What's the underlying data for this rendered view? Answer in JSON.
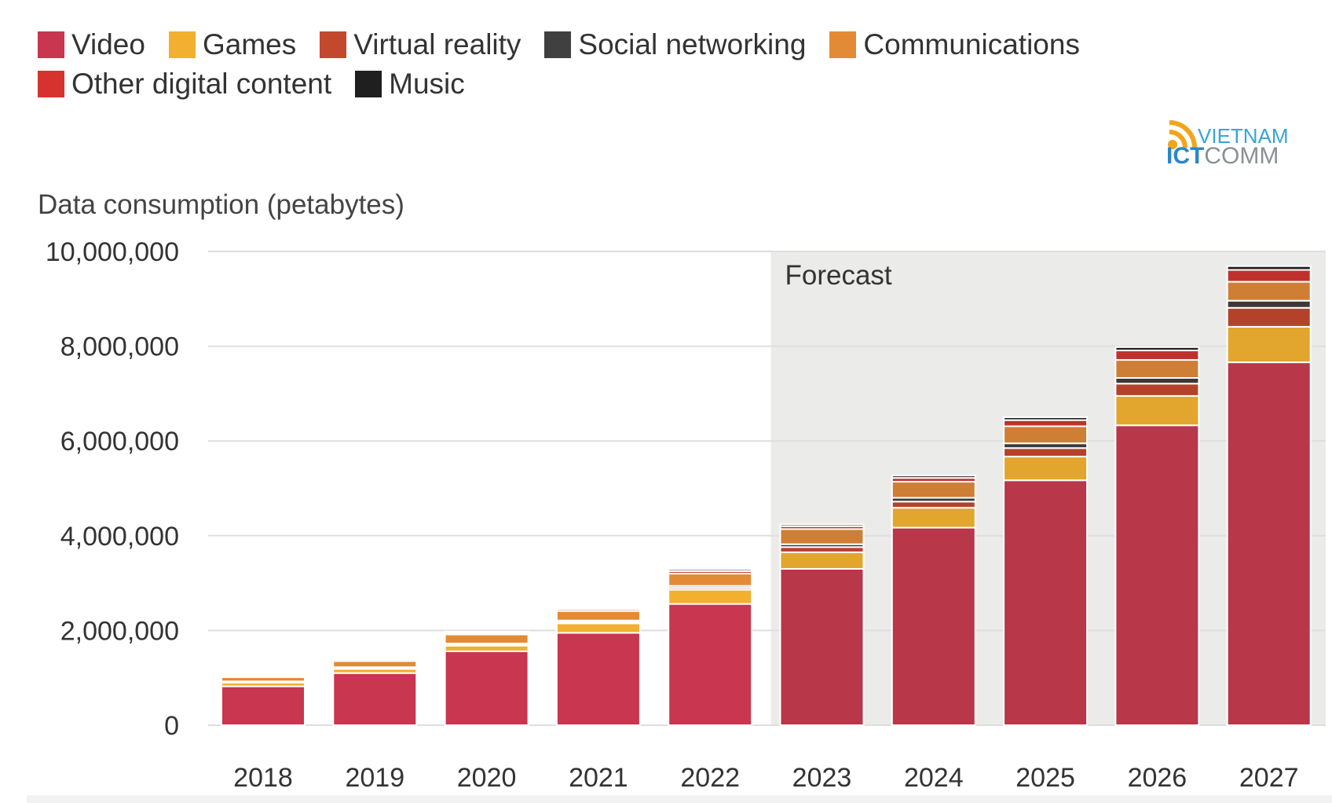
{
  "legend": [
    {
      "label": "Video",
      "color": "#c8364f"
    },
    {
      "label": "Games",
      "color": "#f2b030"
    },
    {
      "label": "Virtual reality",
      "color": "#c2492b"
    },
    {
      "label": "Social networking",
      "color": "#404040"
    },
    {
      "label": "Communications",
      "color": "#e38a36"
    },
    {
      "label": "Other digital content",
      "color": "#d6322e"
    },
    {
      "label": "Music",
      "color": "#1f1f1f"
    }
  ],
  "logo": {
    "top": "VIETNAM",
    "bottom_a": "ICT",
    "bottom_b": "COMM"
  },
  "chart_data": {
    "type": "bar",
    "stacked": true,
    "title": "Data consumption (petabytes)",
    "categories": [
      "2018",
      "2019",
      "2020",
      "2021",
      "2022",
      "2023",
      "2024",
      "2025",
      "2026",
      "2027"
    ],
    "ylim": [
      0,
      10000000
    ],
    "yticks": [
      "0",
      "2,000,000",
      "4,000,000",
      "6,000,000",
      "8,000,000",
      "10,000,000"
    ],
    "grid": true,
    "legend_position": "top",
    "annotation": {
      "text": "Forecast",
      "from_category": "2023",
      "to_category": "2027"
    },
    "series": [
      {
        "name": "Video",
        "color": "#c8364f",
        "forecast_color": "#b83748",
        "values": [
          820000,
          1100000,
          1560000,
          1950000,
          2560000,
          3300000,
          4170000,
          5170000,
          6330000,
          7660000
        ]
      },
      {
        "name": "Games",
        "color": "#f2b030",
        "forecast_color": "#e2a52d",
        "values": [
          80000,
          90000,
          120000,
          200000,
          300000,
          350000,
          420000,
          500000,
          620000,
          750000
        ]
      },
      {
        "name": "Virtual reality",
        "color": "#c2492b",
        "forecast_color": "#b4422b",
        "values": [
          10000,
          15000,
          20000,
          30000,
          40000,
          110000,
          130000,
          180000,
          260000,
          400000
        ]
      },
      {
        "name": "Social networking",
        "color": "#404040",
        "forecast_color": "#3a3a3a",
        "values": [
          15000,
          20000,
          25000,
          30000,
          40000,
          60000,
          80000,
          100000,
          120000,
          150000
        ]
      },
      {
        "name": "Communications",
        "color": "#e38a36",
        "forecast_color": "#cf7e36",
        "values": [
          90000,
          130000,
          190000,
          200000,
          260000,
          320000,
          340000,
          360000,
          380000,
          400000
        ]
      },
      {
        "name": "Other digital content",
        "color": "#d6322e",
        "forecast_color": "#c0312e",
        "values": [
          20000,
          25000,
          30000,
          40000,
          50000,
          60000,
          80000,
          130000,
          200000,
          250000
        ]
      },
      {
        "name": "Music",
        "color": "#1f1f1f",
        "forecast_color": "#1f1f1f",
        "values": [
          20000,
          25000,
          30000,
          30000,
          40000,
          40000,
          50000,
          60000,
          70000,
          80000
        ]
      }
    ]
  }
}
